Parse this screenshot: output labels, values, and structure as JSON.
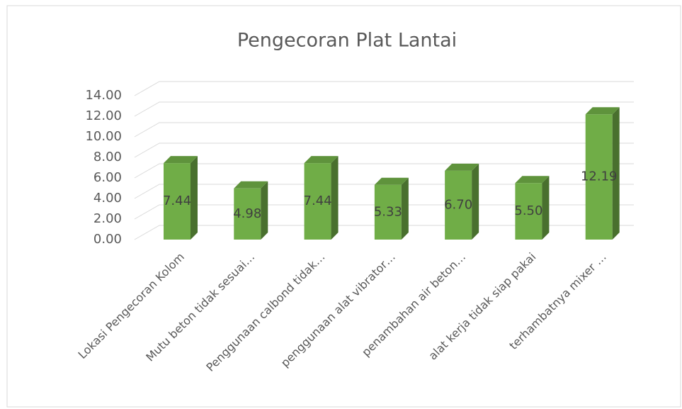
{
  "chart_data": {
    "type": "bar3d",
    "title": "Pengecoran Plat Lantai",
    "categories": [
      "Lokasi Pengecoran Kolom",
      "Mutu beton tidak sesuai…",
      "Penggunaan calbond tidak…",
      "penggunaan alat vibrator…",
      "penambahan air beton…",
      "alat kerja tidak siap pakai",
      "terhambatnya mixer …"
    ],
    "values": [
      7.44,
      4.98,
      7.44,
      5.33,
      6.7,
      5.5,
      12.19
    ],
    "value_labels": [
      "7.44",
      "4.98",
      "7.44",
      "5.33",
      "6.70",
      "5.50",
      "12.19"
    ],
    "color": "#70ad47",
    "ylim": [
      0,
      14
    ],
    "yticks": [
      {
        "value": 0,
        "label": "0.00"
      },
      {
        "value": 2,
        "label": "2.00"
      },
      {
        "value": 4,
        "label": "4.00"
      },
      {
        "value": 6,
        "label": "6.00"
      },
      {
        "value": 8,
        "label": "8.00"
      },
      {
        "value": 10,
        "label": "10.00"
      },
      {
        "value": 12,
        "label": "12.00"
      },
      {
        "value": 14,
        "label": "14.00"
      }
    ],
    "grid": true
  }
}
